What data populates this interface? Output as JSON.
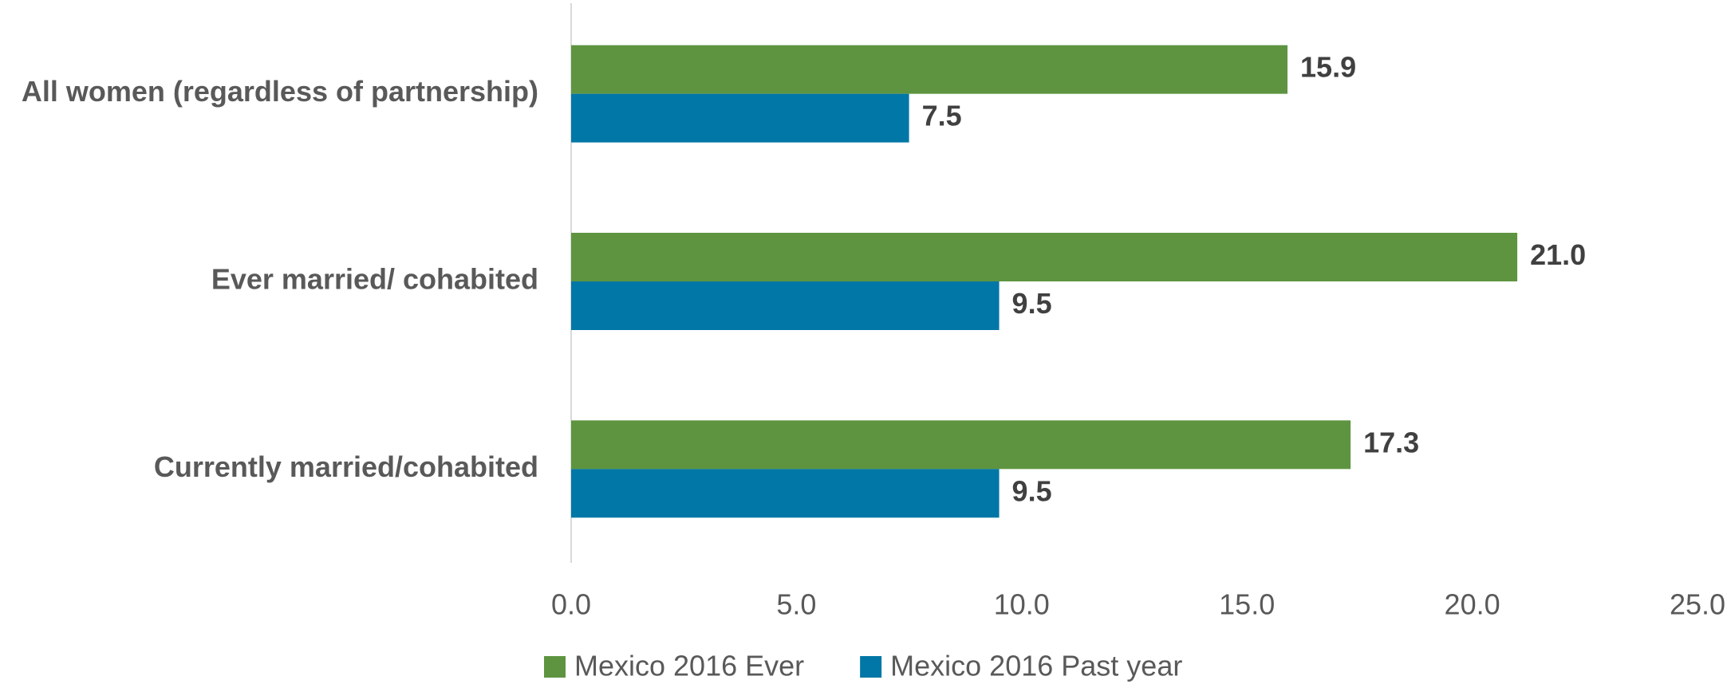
{
  "chart_data": {
    "type": "hbar",
    "categories": [
      "All women (regardless of partnership)",
      "Ever married/ cohabited",
      "Currently married/cohabited"
    ],
    "series": [
      {
        "name": "Mexico 2016 Ever",
        "color": "#5e9440",
        "values": [
          15.9,
          21.0,
          17.3
        ],
        "value_labels": [
          "15.9",
          "21.0",
          "17.3"
        ]
      },
      {
        "name": "Mexico 2016 Past year",
        "color": "#0077a6",
        "values": [
          7.5,
          9.5,
          9.5
        ],
        "value_labels": [
          "7.5",
          "9.5",
          "9.5"
        ]
      }
    ],
    "xlim": [
      0,
      25
    ],
    "xticks": [
      {
        "value": 0,
        "label": "0.0"
      },
      {
        "value": 5,
        "label": "5.0"
      },
      {
        "value": 10,
        "label": "10.0"
      },
      {
        "value": 15,
        "label": "15.0"
      },
      {
        "value": 20,
        "label": "20.0"
      },
      {
        "value": 25,
        "label": "25.0"
      }
    ],
    "grid": false,
    "legend": "bottom"
  }
}
